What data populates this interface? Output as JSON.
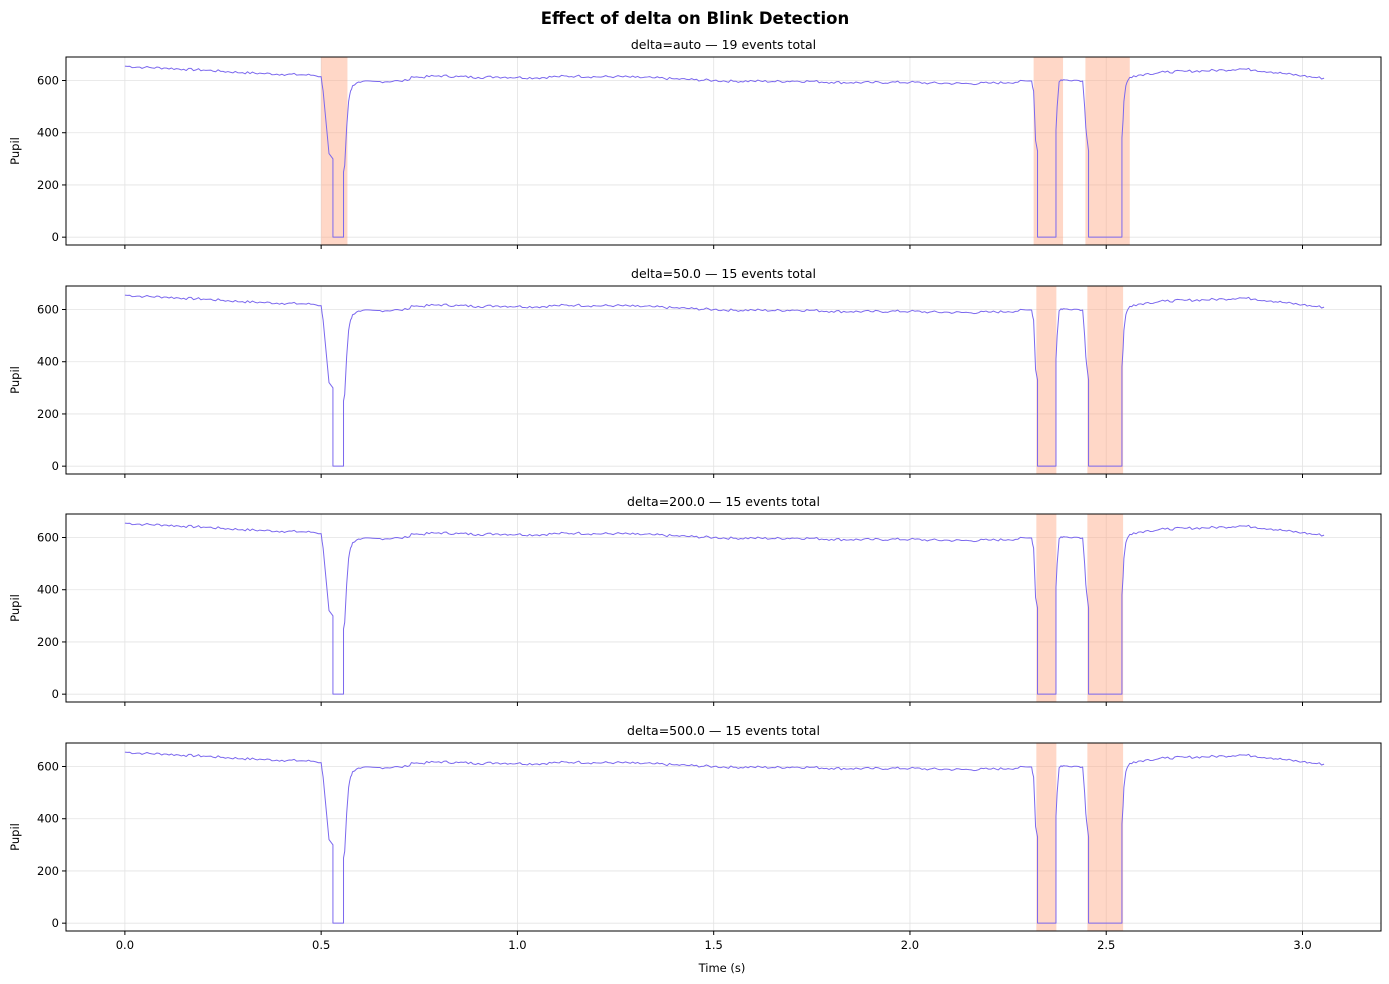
{
  "figure_title": "Effect of delta on Blink Detection",
  "chart_data": [
    {
      "type": "line",
      "title": "delta=auto — 19 events total",
      "ylabel": "Pupil",
      "xlabel": "",
      "xlim": [
        -0.15,
        3.2
      ],
      "ylim": [
        -30,
        690
      ],
      "xticks": [
        0.0,
        0.5,
        1.0,
        1.5,
        2.0,
        2.5,
        3.0
      ],
      "xtick_labels": [
        "0.0",
        "0.5",
        "1.0",
        "1.5",
        "2.0",
        "2.5",
        "3.0"
      ],
      "yticks": [
        0,
        200,
        400,
        600
      ],
      "ytick_labels": [
        "0",
        "200",
        "400",
        "600"
      ],
      "grid": true,
      "series_color": "#7b68ee",
      "shade_color": "#ffa07a",
      "blink_intervals": [
        [
          0.5,
          0.567
        ],
        [
          2.315,
          2.39
        ],
        [
          2.447,
          2.56
        ]
      ]
    },
    {
      "type": "line",
      "title": "delta=50.0 — 15 events total",
      "ylabel": "Pupil",
      "xlabel": "",
      "xlim": [
        -0.15,
        3.2
      ],
      "ylim": [
        -30,
        690
      ],
      "xticks": [
        0.0,
        0.5,
        1.0,
        1.5,
        2.0,
        2.5,
        3.0
      ],
      "xtick_labels": [
        "0.0",
        "0.5",
        "1.0",
        "1.5",
        "2.0",
        "2.5",
        "3.0"
      ],
      "yticks": [
        0,
        200,
        400,
        600
      ],
      "ytick_labels": [
        "0",
        "200",
        "400",
        "600"
      ],
      "grid": true,
      "series_color": "#7b68ee",
      "shade_color": "#ffa07a",
      "blink_intervals": [
        [
          2.322,
          2.373
        ],
        [
          2.452,
          2.543
        ]
      ]
    },
    {
      "type": "line",
      "title": "delta=200.0 — 15 events total",
      "ylabel": "Pupil",
      "xlabel": "",
      "xlim": [
        -0.15,
        3.2
      ],
      "ylim": [
        -30,
        690
      ],
      "xticks": [
        0.0,
        0.5,
        1.0,
        1.5,
        2.0,
        2.5,
        3.0
      ],
      "xtick_labels": [
        "0.0",
        "0.5",
        "1.0",
        "1.5",
        "2.0",
        "2.5",
        "3.0"
      ],
      "yticks": [
        0,
        200,
        400,
        600
      ],
      "ytick_labels": [
        "0",
        "200",
        "400",
        "600"
      ],
      "grid": true,
      "series_color": "#7b68ee",
      "shade_color": "#ffa07a",
      "blink_intervals": [
        [
          2.322,
          2.373
        ],
        [
          2.452,
          2.543
        ]
      ]
    },
    {
      "type": "line",
      "title": "delta=500.0 — 15 events total",
      "ylabel": "Pupil",
      "xlabel": "Time (s)",
      "xlim": [
        -0.15,
        3.2
      ],
      "ylim": [
        -30,
        690
      ],
      "xticks": [
        0.0,
        0.5,
        1.0,
        1.5,
        2.0,
        2.5,
        3.0
      ],
      "xtick_labels": [
        "0.0",
        "0.5",
        "1.0",
        "1.5",
        "2.0",
        "2.5",
        "3.0"
      ],
      "yticks": [
        0,
        200,
        400,
        600
      ],
      "ytick_labels": [
        "0",
        "200",
        "400",
        "600"
      ],
      "grid": true,
      "series_color": "#7b68ee",
      "shade_color": "#ffa07a",
      "blink_intervals": [
        [
          2.322,
          2.373
        ],
        [
          2.452,
          2.543
        ]
      ]
    }
  ],
  "pupil_signal": {
    "x": [
      0.0,
      0.05,
      0.1,
      0.15,
      0.2,
      0.25,
      0.3,
      0.35,
      0.4,
      0.45,
      0.48,
      0.5,
      0.505,
      0.51,
      0.515,
      0.52,
      0.525,
      0.53,
      0.53,
      0.557,
      0.557,
      0.56,
      0.565,
      0.57,
      0.575,
      0.58,
      0.59,
      0.6,
      0.65,
      0.7,
      0.72,
      0.73,
      0.75,
      0.8,
      0.85,
      0.9,
      0.95,
      1.0,
      1.05,
      1.1,
      1.15,
      1.2,
      1.25,
      1.3,
      1.35,
      1.4,
      1.45,
      1.5,
      1.55,
      1.6,
      1.65,
      1.7,
      1.75,
      1.8,
      1.85,
      1.9,
      1.95,
      2.0,
      2.05,
      2.1,
      2.15,
      2.2,
      2.25,
      2.3,
      2.31,
      2.315,
      2.318,
      2.32,
      2.325,
      2.325,
      2.372,
      2.372,
      2.375,
      2.38,
      2.385,
      2.39,
      2.4,
      2.43,
      2.44,
      2.445,
      2.448,
      2.45,
      2.455,
      2.455,
      2.54,
      2.54,
      2.543,
      2.545,
      2.55,
      2.555,
      2.56,
      2.57,
      2.6,
      2.65,
      2.7,
      2.75,
      2.8,
      2.84,
      2.88,
      2.92,
      2.96,
      3.0,
      3.03,
      3.055
    ],
    "y": [
      655,
      650,
      648,
      643,
      640,
      635,
      630,
      627,
      624,
      622,
      620,
      615,
      560,
      480,
      400,
      320,
      310,
      300,
      0,
      0,
      250,
      275,
      420,
      520,
      560,
      580,
      590,
      593,
      596,
      598,
      600,
      615,
      612,
      618,
      615,
      612,
      614,
      612,
      610,
      615,
      617,
      614,
      615,
      612,
      610,
      606,
      603,
      600,
      597,
      598,
      596,
      598,
      597,
      593,
      592,
      592,
      593,
      593,
      590,
      589,
      588,
      590,
      592,
      598,
      598,
      560,
      450,
      370,
      330,
      0,
      0,
      410,
      500,
      595,
      603,
      603,
      602,
      600,
      598,
      500,
      420,
      390,
      330,
      0,
      0,
      380,
      450,
      520,
      580,
      600,
      612,
      618,
      625,
      632,
      635,
      637,
      640,
      645,
      640,
      633,
      625,
      618,
      612,
      609
    ]
  },
  "x_axis_label": "Time (s)"
}
